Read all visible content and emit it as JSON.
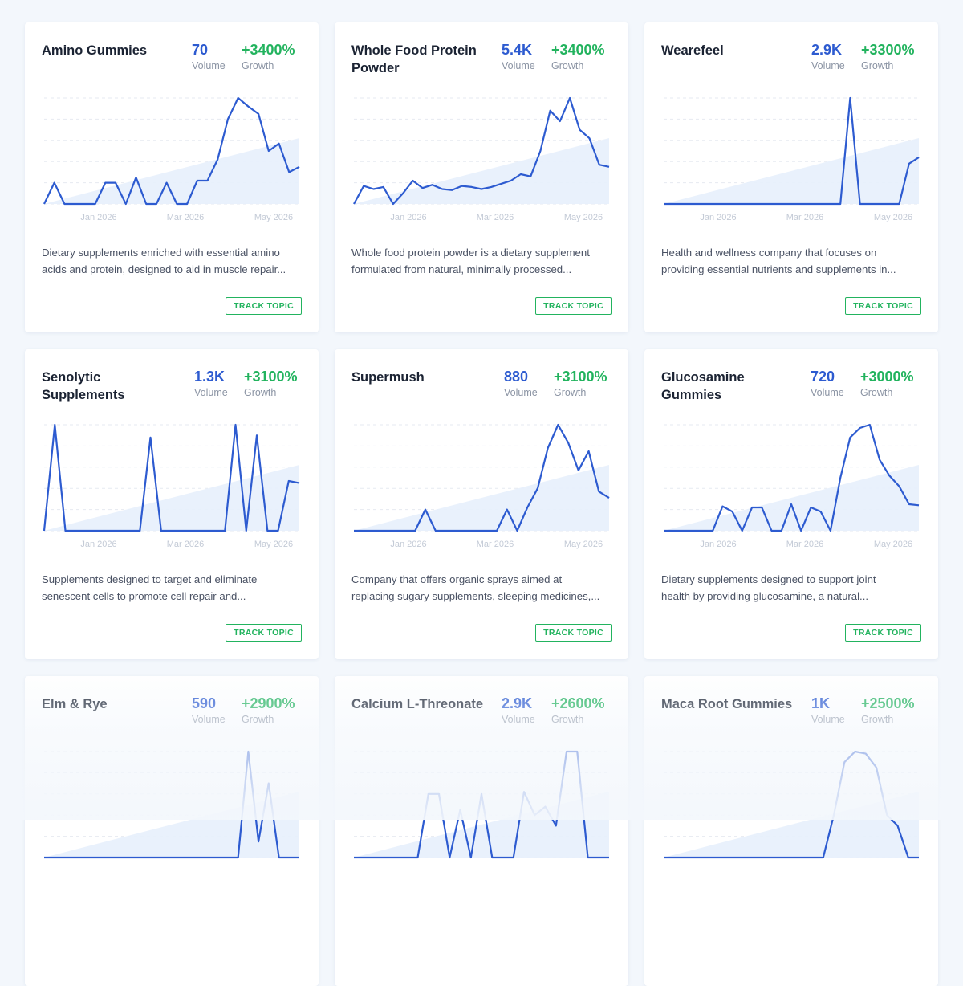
{
  "cards": [
    {
      "title": "Amino Gummies",
      "volume": "70",
      "volume_label": "Volume",
      "growth": "+3400%",
      "growth_label": "Growth",
      "desc1": "Dietary supplements enriched with essential amino",
      "desc2": "acids and protein, designed to aid in muscle repair...",
      "track_label": "TRACK TOPIC",
      "x_ticks": [
        "Jan 2026",
        "Mar 2026",
        "May 2026"
      ],
      "series": [
        0,
        20,
        0,
        0,
        0,
        0,
        20,
        20,
        0,
        25,
        0,
        0,
        20,
        0,
        0,
        22,
        22,
        42,
        80,
        100,
        92,
        85,
        50,
        57,
        30,
        35
      ]
    },
    {
      "title": "Whole Food Protein Powder",
      "volume": "5.4K",
      "volume_label": "Volume",
      "growth": "+3400%",
      "growth_label": "Growth",
      "desc1": "Whole food protein powder is a dietary supplement",
      "desc2": "formulated from natural, minimally processed...",
      "track_label": "TRACK TOPIC",
      "x_ticks": [
        "Jan 2026",
        "Mar 2026",
        "May 2026"
      ],
      "series": [
        0,
        17,
        14,
        16,
        0,
        10,
        22,
        15,
        18,
        14,
        13,
        17,
        16,
        14,
        16,
        19,
        22,
        28,
        26,
        50,
        88,
        78,
        100,
        70,
        62,
        37,
        35
      ]
    },
    {
      "title": "Wearefeel",
      "volume": "2.9K",
      "volume_label": "Volume",
      "growth": "+3300%",
      "growth_label": "Growth",
      "desc1": "Health and wellness company that focuses on",
      "desc2": "providing essential nutrients and supplements in...",
      "track_label": "TRACK TOPIC",
      "x_ticks": [
        "Jan 2026",
        "Mar 2026",
        "May 2026"
      ],
      "series": [
        0,
        0,
        0,
        0,
        0,
        0,
        0,
        0,
        0,
        0,
        0,
        0,
        0,
        0,
        0,
        0,
        0,
        0,
        0,
        100,
        0,
        0,
        0,
        0,
        0,
        38,
        44
      ]
    },
    {
      "title": "Senolytic Supplements",
      "volume": "1.3K",
      "volume_label": "Volume",
      "growth": "+3100%",
      "growth_label": "Growth",
      "desc1": "Supplements designed to target and eliminate",
      "desc2": "senescent cells to promote cell repair and...",
      "track_label": "TRACK TOPIC",
      "x_ticks": [
        "Jan 2026",
        "Mar 2026",
        "May 2026"
      ],
      "series": [
        0,
        100,
        0,
        0,
        0,
        0,
        0,
        0,
        0,
        0,
        88,
        0,
        0,
        0,
        0,
        0,
        0,
        0,
        100,
        0,
        90,
        0,
        0,
        47,
        45
      ]
    },
    {
      "title": "Supermush",
      "volume": "880",
      "volume_label": "Volume",
      "growth": "+3100%",
      "growth_label": "Growth",
      "desc1": "Company that offers organic sprays aimed at",
      "desc2": "replacing sugary supplements, sleeping medicines,...",
      "track_label": "TRACK TOPIC",
      "x_ticks": [
        "Jan 2026",
        "Mar 2026",
        "May 2026"
      ],
      "series": [
        0,
        0,
        0,
        0,
        0,
        0,
        0,
        20,
        0,
        0,
        0,
        0,
        0,
        0,
        0,
        20,
        0,
        22,
        40,
        78,
        100,
        83,
        57,
        75,
        37,
        31
      ]
    },
    {
      "title": "Glucosamine Gummies",
      "volume": "720",
      "volume_label": "Volume",
      "growth": "+3000%",
      "growth_label": "Growth",
      "desc1": "Dietary supplements designed to support joint",
      "desc2": "health by providing glucosamine, a natural...",
      "track_label": "TRACK TOPIC",
      "x_ticks": [
        "Jan 2026",
        "Mar 2026",
        "May 2026"
      ],
      "series": [
        0,
        0,
        0,
        0,
        0,
        0,
        23,
        18,
        0,
        22,
        22,
        0,
        0,
        25,
        0,
        22,
        18,
        0,
        50,
        88,
        97,
        100,
        67,
        52,
        42,
        25,
        24
      ]
    },
    {
      "title": "Elm & Rye",
      "volume": "590",
      "volume_label": "Volume",
      "growth": "+2900%",
      "growth_label": "Growth",
      "desc1": "",
      "desc2": "",
      "track_label": "",
      "x_ticks": [
        "",
        "",
        ""
      ],
      "series": [
        0,
        0,
        0,
        0,
        0,
        0,
        0,
        0,
        0,
        0,
        0,
        0,
        0,
        0,
        0,
        0,
        0,
        0,
        0,
        0,
        100,
        15,
        70,
        0,
        0,
        0
      ]
    },
    {
      "title": "Calcium L-Threonate",
      "volume": "2.9K",
      "volume_label": "Volume",
      "growth": "+2600%",
      "growth_label": "Growth",
      "desc1": "",
      "desc2": "",
      "track_label": "",
      "x_ticks": [
        "",
        "",
        ""
      ],
      "series": [
        0,
        0,
        0,
        0,
        0,
        0,
        0,
        60,
        60,
        0,
        45,
        0,
        60,
        0,
        0,
        0,
        62,
        40,
        48,
        30,
        100,
        100,
        0,
        0,
        0
      ]
    },
    {
      "title": "Maca Root Gummies",
      "volume": "1K",
      "volume_label": "Volume",
      "growth": "+2500%",
      "growth_label": "Growth",
      "desc1": "",
      "desc2": "",
      "track_label": "",
      "x_ticks": [
        "",
        "",
        ""
      ],
      "series": [
        0,
        0,
        0,
        0,
        0,
        0,
        0,
        0,
        0,
        0,
        0,
        0,
        0,
        0,
        0,
        0,
        40,
        90,
        100,
        98,
        85,
        40,
        30,
        0,
        0
      ]
    }
  ],
  "colors": {
    "line": "#2d5bd0",
    "volume": "#2d5bd0",
    "growth": "#22b35e",
    "track": "#22b35e"
  }
}
